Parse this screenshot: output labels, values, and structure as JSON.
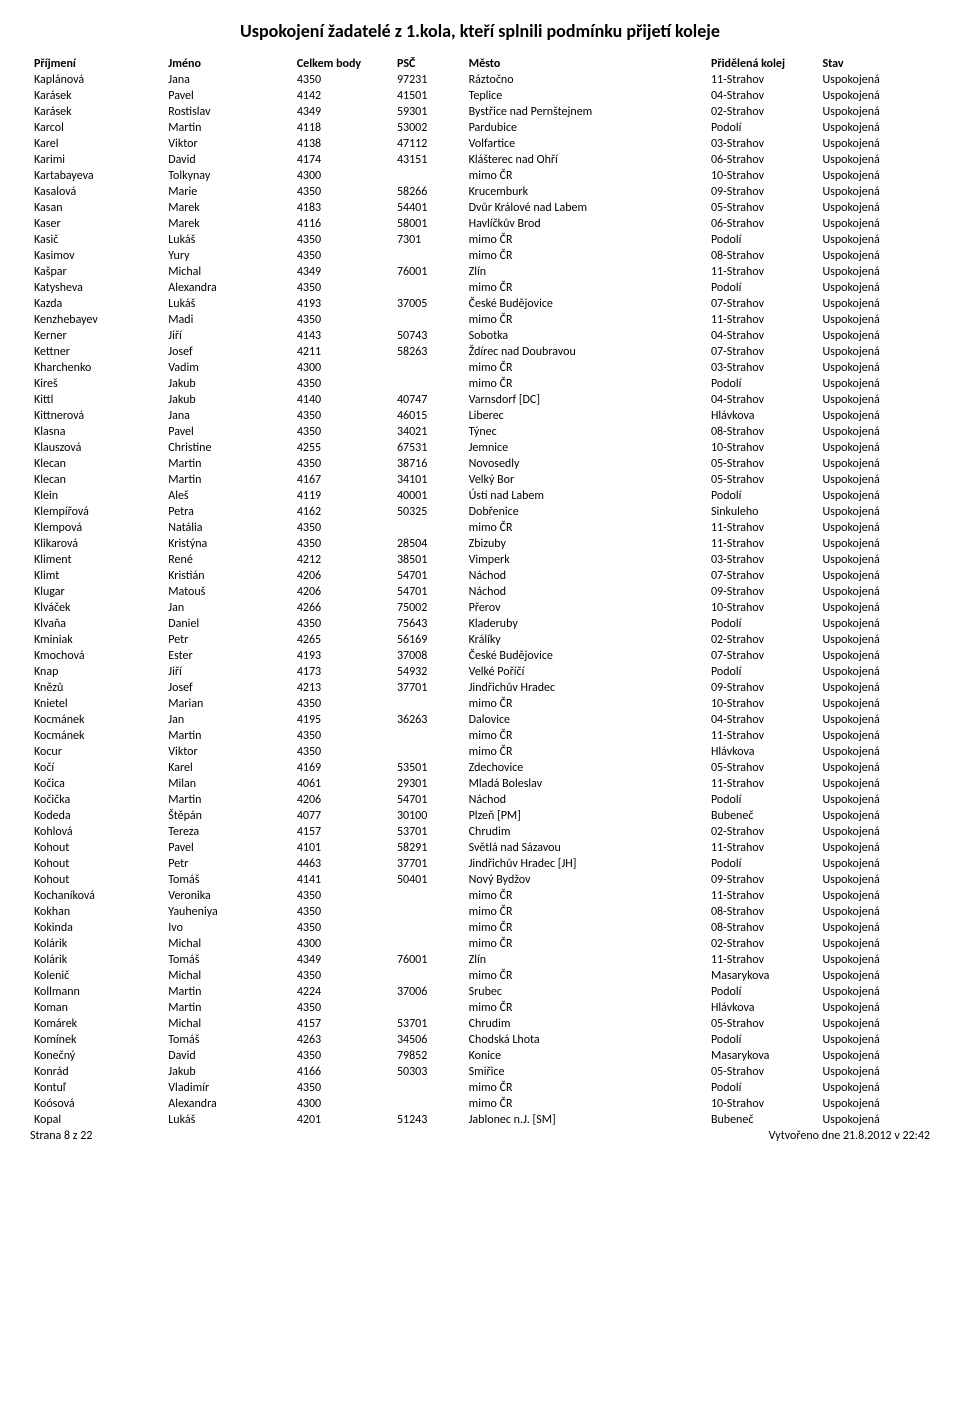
{
  "title": "Uspokojení žadatelé z 1.kola, kteří splnili podmínku přijetí koleje",
  "columns": [
    "Příjmení",
    "Jméno",
    "Celkem body",
    "PSČ",
    "Město",
    "Přidělená kolej",
    "Stav"
  ],
  "footer_left": "Strana 8 z 22",
  "footer_right": "Vytvořeno dne 21.8.2012 v 22:42",
  "rows": [
    [
      "Kaplánová",
      "Jana",
      "4350",
      "97231",
      "Ráztočno",
      "11-Strahov",
      "Uspokojená"
    ],
    [
      "Karásek",
      "Pavel",
      "4142",
      "41501",
      "Teplice",
      "04-Strahov",
      "Uspokojená"
    ],
    [
      "Karásek",
      "Rostislav",
      "4349",
      "59301",
      "Bystřice nad Pernštejnem",
      "02-Strahov",
      "Uspokojená"
    ],
    [
      "Karcol",
      "Martin",
      "4118",
      "53002",
      "Pardubice",
      "Podolí",
      "Uspokojená"
    ],
    [
      "Karel",
      "Viktor",
      "4138",
      "47112",
      "Volfartice",
      "03-Strahov",
      "Uspokojená"
    ],
    [
      "Karimi",
      "David",
      "4174",
      "43151",
      "Klášterec nad Ohří",
      "06-Strahov",
      "Uspokojená"
    ],
    [
      "Kartabayeva",
      "Tolkynay",
      "4300",
      "",
      "mimo ČR",
      "10-Strahov",
      "Uspokojená"
    ],
    [
      "Kasalová",
      "Marie",
      "4350",
      "58266",
      "Krucemburk",
      "09-Strahov",
      "Uspokojená"
    ],
    [
      "Kasan",
      "Marek",
      "4183",
      "54401",
      "Dvůr Králové nad Labem",
      "05-Strahov",
      "Uspokojená"
    ],
    [
      "Kaser",
      "Marek",
      "4116",
      "58001",
      "Havlíčkův Brod",
      "06-Strahov",
      "Uspokojená"
    ],
    [
      "Kasič",
      "Lukáš",
      "4350",
      "7301",
      "mimo ČR",
      "Podolí",
      "Uspokojená"
    ],
    [
      "Kasimov",
      "Yury",
      "4350",
      "",
      "mimo ČR",
      "08-Strahov",
      "Uspokojená"
    ],
    [
      "Kašpar",
      "Michal",
      "4349",
      "76001",
      "Zlín",
      "11-Strahov",
      "Uspokojená"
    ],
    [
      "Katysheva",
      "Alexandra",
      "4350",
      "",
      "mimo ČR",
      "Podolí",
      "Uspokojená"
    ],
    [
      "Kazda",
      "Lukáš",
      "4193",
      "37005",
      "České Budějovice",
      "07-Strahov",
      "Uspokojená"
    ],
    [
      "Kenzhebayev",
      "Madi",
      "4350",
      "",
      "mimo ČR",
      "11-Strahov",
      "Uspokojená"
    ],
    [
      "Kerner",
      "Jiří",
      "4143",
      "50743",
      "Sobotka",
      "04-Strahov",
      "Uspokojená"
    ],
    [
      "Kettner",
      "Josef",
      "4211",
      "58263",
      "Ždírec nad Doubravou",
      "07-Strahov",
      "Uspokojená"
    ],
    [
      "Kharchenko",
      "Vadim",
      "4300",
      "",
      "mimo ČR",
      "03-Strahov",
      "Uspokojená"
    ],
    [
      "Kireš",
      "Jakub",
      "4350",
      "",
      "mimo ČR",
      "Podolí",
      "Uspokojená"
    ],
    [
      "Kittl",
      "Jakub",
      "4140",
      "40747",
      "Varnsdorf [DC]",
      "04-Strahov",
      "Uspokojená"
    ],
    [
      "Kittnerová",
      "Jana",
      "4350",
      "46015",
      "Liberec",
      "Hlávkova",
      "Uspokojená"
    ],
    [
      "Klasna",
      "Pavel",
      "4350",
      "34021",
      "Týnec",
      "08-Strahov",
      "Uspokojená"
    ],
    [
      "Klauszová",
      "Christine",
      "4255",
      "67531",
      "Jemnice",
      "10-Strahov",
      "Uspokojená"
    ],
    [
      "Klecan",
      "Martin",
      "4350",
      "38716",
      "Novosedly",
      "05-Strahov",
      "Uspokojená"
    ],
    [
      "Klecan",
      "Martin",
      "4167",
      "34101",
      "Velký Bor",
      "05-Strahov",
      "Uspokojená"
    ],
    [
      "Klein",
      "Aleš",
      "4119",
      "40001",
      "Ústí nad Labem",
      "Podolí",
      "Uspokojená"
    ],
    [
      "Klempířová",
      "Petra",
      "4162",
      "50325",
      "Dobřenice",
      "Sinkuleho",
      "Uspokojená"
    ],
    [
      "Klempová",
      "Natália",
      "4350",
      "",
      "mimo ČR",
      "11-Strahov",
      "Uspokojená"
    ],
    [
      "Klikarová",
      "Kristýna",
      "4350",
      "28504",
      "Zbizuby",
      "11-Strahov",
      "Uspokojená"
    ],
    [
      "Kliment",
      "René",
      "4212",
      "38501",
      "Vimperk",
      "03-Strahov",
      "Uspokojená"
    ],
    [
      "Klimt",
      "Kristián",
      "4206",
      "54701",
      "Náchod",
      "07-Strahov",
      "Uspokojená"
    ],
    [
      "Klugar",
      "Matouš",
      "4206",
      "54701",
      "Náchod",
      "09-Strahov",
      "Uspokojená"
    ],
    [
      "Klváček",
      "Jan",
      "4266",
      "75002",
      "Přerov",
      "10-Strahov",
      "Uspokojená"
    ],
    [
      "Klvaňa",
      "Daniel",
      "4350",
      "75643",
      "Kladeruby",
      "Podolí",
      "Uspokojená"
    ],
    [
      "Kminiak",
      "Petr",
      "4265",
      "56169",
      "Králíky",
      "02-Strahov",
      "Uspokojená"
    ],
    [
      "Kmochová",
      "Ester",
      "4193",
      "37008",
      "České Budějovice",
      "07-Strahov",
      "Uspokojená"
    ],
    [
      "Knap",
      "Jiří",
      "4173",
      "54932",
      "Velké Poříčí",
      "Podolí",
      "Uspokojená"
    ],
    [
      "Knězů",
      "Josef",
      "4213",
      "37701",
      "Jindřichův Hradec",
      "09-Strahov",
      "Uspokojená"
    ],
    [
      "Knietel",
      "Marian",
      "4350",
      "",
      "mimo ČR",
      "10-Strahov",
      "Uspokojená"
    ],
    [
      "Kocmánek",
      "Jan",
      "4195",
      "36263",
      "Dalovice",
      "04-Strahov",
      "Uspokojená"
    ],
    [
      "Kocmánek",
      "Martin",
      "4350",
      "",
      "mimo ČR",
      "11-Strahov",
      "Uspokojená"
    ],
    [
      "Kocur",
      "Viktor",
      "4350",
      "",
      "mimo ČR",
      "Hlávkova",
      "Uspokojená"
    ],
    [
      "Kočí",
      "Karel",
      "4169",
      "53501",
      "Zdechovice",
      "05-Strahov",
      "Uspokojená"
    ],
    [
      "Kočica",
      "Milan",
      "4061",
      "29301",
      "Mladá Boleslav",
      "11-Strahov",
      "Uspokojená"
    ],
    [
      "Kočička",
      "Martin",
      "4206",
      "54701",
      "Náchod",
      "Podolí",
      "Uspokojená"
    ],
    [
      "Kodeda",
      "Štěpán",
      "4077",
      "30100",
      "Plzeň [PM]",
      "Bubeneč",
      "Uspokojená"
    ],
    [
      "Kohlová",
      "Tereza",
      "4157",
      "53701",
      "Chrudim",
      "02-Strahov",
      "Uspokojená"
    ],
    [
      "Kohout",
      "Pavel",
      "4101",
      "58291",
      "Světlá nad Sázavou",
      "11-Strahov",
      "Uspokojená"
    ],
    [
      "Kohout",
      "Petr",
      "4463",
      "37701",
      "Jindřichův Hradec [JH]",
      "Podolí",
      "Uspokojená"
    ],
    [
      "Kohout",
      "Tomáš",
      "4141",
      "50401",
      "Nový Bydžov",
      "09-Strahov",
      "Uspokojená"
    ],
    [
      "Kochaníková",
      "Veronika",
      "4350",
      "",
      "mimo ČR",
      "11-Strahov",
      "Uspokojená"
    ],
    [
      "Kokhan",
      "Yauheniya",
      "4350",
      "",
      "mimo ČR",
      "08-Strahov",
      "Uspokojená"
    ],
    [
      "Kokinda",
      "Ivo",
      "4350",
      "",
      "mimo ČR",
      "08-Strahov",
      "Uspokojená"
    ],
    [
      "Kolárik",
      "Michal",
      "4300",
      "",
      "mimo ČR",
      "02-Strahov",
      "Uspokojená"
    ],
    [
      "Kolárik",
      "Tomáš",
      "4349",
      "76001",
      "Zlín",
      "11-Strahov",
      "Uspokojená"
    ],
    [
      "Kolenič",
      "Michal",
      "4350",
      "",
      "mimo ČR",
      "Masarykova",
      "Uspokojená"
    ],
    [
      "Kollmann",
      "Martin",
      "4224",
      "37006",
      "Srubec",
      "Podolí",
      "Uspokojená"
    ],
    [
      "Koman",
      "Martin",
      "4350",
      "",
      "mimo ČR",
      "Hlávkova",
      "Uspokojená"
    ],
    [
      "Komárek",
      "Michal",
      "4157",
      "53701",
      "Chrudim",
      "05-Strahov",
      "Uspokojená"
    ],
    [
      "Komínek",
      "Tomáš",
      "4263",
      "34506",
      "Chodská Lhota",
      "Podolí",
      "Uspokojená"
    ],
    [
      "Konečný",
      "David",
      "4350",
      "79852",
      "Konice",
      "Masarykova",
      "Uspokojená"
    ],
    [
      "Konrád",
      "Jakub",
      "4166",
      "50303",
      "Smiřice",
      "05-Strahov",
      "Uspokojená"
    ],
    [
      "Kontuľ",
      "Vladimír",
      "4350",
      "",
      "mimo ČR",
      "Podolí",
      "Uspokojená"
    ],
    [
      "Koósová",
      "Alexandra",
      "4300",
      "",
      "mimo ČR",
      "10-Strahov",
      "Uspokojená"
    ],
    [
      "Kopal",
      "Lukáš",
      "4201",
      "51243",
      "Jablonec n.J. [SM]",
      "Bubeneč",
      "Uspokojená"
    ]
  ]
}
